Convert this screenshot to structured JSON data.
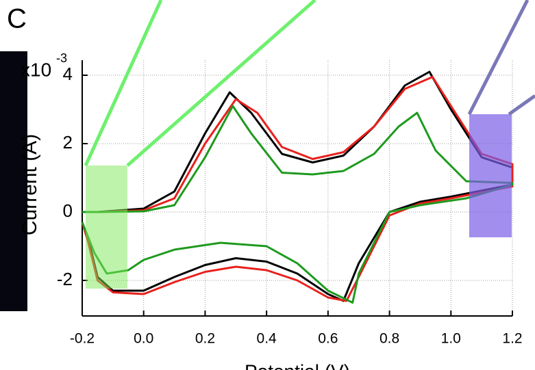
{
  "chart_data": {
    "type": "line",
    "panel_label": "C",
    "x_label": "Potential (V)",
    "y_label": "Current (A)",
    "y_multiplier": "x10",
    "y_multiplier_exponent": "-3",
    "xlim": [
      -0.2,
      1.2
    ],
    "ylim": [
      -3.04,
      4.44
    ],
    "xticks": [
      -0.2,
      {
        "value": 0,
        "label": "0.0"
      },
      0.2,
      0.4,
      0.6,
      0.8,
      {
        "value": 1,
        "label": "1.0"
      },
      1.2
    ],
    "yticks": [
      -2,
      0,
      2,
      4
    ],
    "grid": true,
    "series": [
      {
        "name": null,
        "color": "#000000",
        "x": [
          -0.2,
          -0.15,
          0.0,
          0.1,
          0.2,
          0.28,
          0.35,
          0.45,
          0.55,
          0.65,
          0.75,
          0.85,
          0.93,
          1.0,
          1.1,
          1.2,
          1.2,
          1.0,
          0.9,
          0.8,
          0.7,
          0.65,
          0.6,
          0.5,
          0.4,
          0.3,
          0.2,
          0.1,
          0.0,
          -0.1,
          -0.15,
          -0.18,
          -0.2
        ],
        "values": [
          0.0,
          0.0,
          0.1,
          0.6,
          2.3,
          3.5,
          2.9,
          1.7,
          1.45,
          1.65,
          2.5,
          3.7,
          4.1,
          3.0,
          1.6,
          1.3,
          0.8,
          0.45,
          0.3,
          0.0,
          -1.5,
          -2.6,
          -2.4,
          -1.8,
          -1.45,
          -1.35,
          -1.55,
          -1.9,
          -2.3,
          -2.3,
          -1.9,
          -0.8,
          -0.3
        ]
      },
      {
        "name": null,
        "color": "#e8201c",
        "x": [
          -0.2,
          -0.15,
          0.0,
          0.1,
          0.2,
          0.3,
          0.37,
          0.45,
          0.55,
          0.65,
          0.75,
          0.85,
          0.94,
          1.0,
          1.1,
          1.2,
          1.2,
          1.0,
          0.9,
          0.8,
          0.7,
          0.66,
          0.6,
          0.5,
          0.4,
          0.3,
          0.2,
          0.1,
          0.0,
          -0.1,
          -0.15,
          -0.18,
          -0.2
        ],
        "values": [
          0.0,
          0.0,
          0.05,
          0.4,
          2.0,
          3.3,
          2.9,
          1.9,
          1.55,
          1.75,
          2.5,
          3.6,
          3.95,
          3.1,
          1.7,
          1.4,
          0.75,
          0.4,
          0.25,
          -0.1,
          -1.9,
          -2.6,
          -2.5,
          -2.0,
          -1.7,
          -1.6,
          -1.75,
          -2.05,
          -2.4,
          -2.35,
          -2.0,
          -0.9,
          -0.3
        ]
      },
      {
        "name": null,
        "color": "#1e9a1e",
        "x": [
          -0.2,
          -0.15,
          0.0,
          0.1,
          0.2,
          0.29,
          0.35,
          0.45,
          0.55,
          0.65,
          0.75,
          0.83,
          0.89,
          0.95,
          1.05,
          1.2,
          1.2,
          1.05,
          0.9,
          0.8,
          0.7,
          0.68,
          0.6,
          0.5,
          0.4,
          0.25,
          0.1,
          0.0,
          -0.05,
          -0.12,
          -0.16,
          -0.2
        ],
        "values": [
          0.0,
          0.0,
          0.02,
          0.2,
          1.6,
          3.1,
          2.3,
          1.15,
          1.1,
          1.2,
          1.7,
          2.5,
          2.9,
          1.8,
          0.9,
          0.85,
          0.8,
          0.4,
          0.2,
          0.0,
          -1.8,
          -2.65,
          -2.3,
          -1.5,
          -1.0,
          -0.9,
          -1.1,
          -1.4,
          -1.7,
          -1.8,
          -1.2,
          -0.3
        ]
      }
    ]
  }
}
